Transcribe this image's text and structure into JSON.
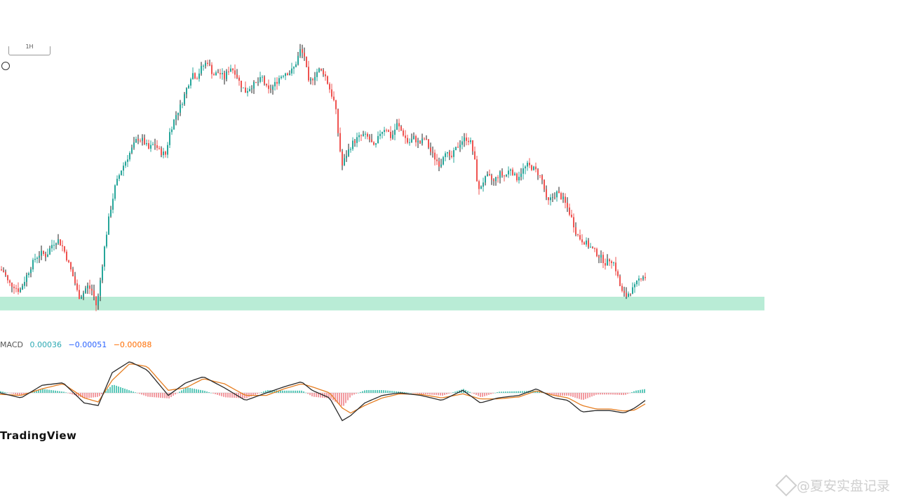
{
  "header": {
    "interval_box_label": "1H"
  },
  "macd_legend": {
    "label": "MACD",
    "values": [
      {
        "text": "0.00036",
        "color": "#2aa8b2"
      },
      {
        "text": "−0.00051",
        "color": "#2962ff"
      },
      {
        "text": "−0.00088",
        "color": "#ff6d00"
      }
    ]
  },
  "brand": {
    "logo_text": "TradingView"
  },
  "watermark": {
    "text": "@夏安实盘记录",
    "icon": "binance-diamond-icon"
  },
  "colors": {
    "up": "#26a69a",
    "down": "#ef5350",
    "wick_dark": "#222222",
    "support_zone": "#b9ecd6",
    "macd_line": "#2a2a2a",
    "signal_line": "#e67e22",
    "hist_up": "#3fbfae",
    "hist_down": "#f08a90"
  },
  "chart_data": {
    "type": "candlestick",
    "y_unit": "price (unlabeled)",
    "ylim": [
      0,
      100
    ],
    "support_zone": {
      "low": 5,
      "high": 10
    },
    "price_path": [
      [
        0,
        20
      ],
      [
        6,
        19
      ],
      [
        12,
        15
      ],
      [
        20,
        14
      ],
      [
        28,
        12
      ],
      [
        35,
        16
      ],
      [
        42,
        20
      ],
      [
        50,
        24
      ],
      [
        58,
        26
      ],
      [
        66,
        25
      ],
      [
        74,
        29
      ],
      [
        82,
        31
      ],
      [
        90,
        28
      ],
      [
        98,
        22
      ],
      [
        106,
        16
      ],
      [
        112,
        10
      ],
      [
        118,
        11
      ],
      [
        124,
        14
      ],
      [
        132,
        12
      ],
      [
        138,
        6
      ],
      [
        144,
        18
      ],
      [
        150,
        30
      ],
      [
        156,
        40
      ],
      [
        164,
        50
      ],
      [
        172,
        56
      ],
      [
        180,
        60
      ],
      [
        188,
        64
      ],
      [
        196,
        68
      ],
      [
        204,
        67
      ],
      [
        212,
        64
      ],
      [
        220,
        66
      ],
      [
        228,
        63
      ],
      [
        236,
        62
      ],
      [
        242,
        70
      ],
      [
        250,
        76
      ],
      [
        258,
        80
      ],
      [
        266,
        86
      ],
      [
        274,
        92
      ],
      [
        280,
        90
      ],
      [
        288,
        94
      ],
      [
        296,
        96
      ],
      [
        304,
        91
      ],
      [
        312,
        92
      ],
      [
        320,
        90
      ],
      [
        328,
        94
      ],
      [
        336,
        92
      ],
      [
        342,
        88
      ],
      [
        350,
        85
      ],
      [
        358,
        87
      ],
      [
        366,
        88
      ],
      [
        374,
        90
      ],
      [
        382,
        85
      ],
      [
        390,
        87
      ],
      [
        398,
        90
      ],
      [
        406,
        92
      ],
      [
        414,
        92
      ],
      [
        420,
        94
      ],
      [
        428,
        100
      ],
      [
        434,
        98
      ],
      [
        440,
        88
      ],
      [
        446,
        90
      ],
      [
        454,
        93
      ],
      [
        462,
        92
      ],
      [
        470,
        86
      ],
      [
        478,
        80
      ],
      [
        484,
        65
      ],
      [
        488,
        58
      ],
      [
        494,
        62
      ],
      [
        502,
        66
      ],
      [
        510,
        68
      ],
      [
        518,
        69
      ],
      [
        526,
        68
      ],
      [
        534,
        64
      ],
      [
        542,
        70
      ],
      [
        550,
        72
      ],
      [
        558,
        68
      ],
      [
        566,
        73
      ],
      [
        574,
        70
      ],
      [
        582,
        66
      ],
      [
        590,
        68
      ],
      [
        598,
        66
      ],
      [
        606,
        68
      ],
      [
        614,
        63
      ],
      [
        622,
        60
      ],
      [
        628,
        58
      ],
      [
        634,
        64
      ],
      [
        642,
        60
      ],
      [
        650,
        64
      ],
      [
        658,
        67
      ],
      [
        666,
        68
      ],
      [
        672,
        66
      ],
      [
        678,
        58
      ],
      [
        682,
        48
      ],
      [
        688,
        52
      ],
      [
        696,
        54
      ],
      [
        704,
        52
      ],
      [
        712,
        55
      ],
      [
        720,
        54
      ],
      [
        728,
        57
      ],
      [
        736,
        53
      ],
      [
        744,
        56
      ],
      [
        752,
        58
      ],
      [
        760,
        57
      ],
      [
        768,
        55
      ],
      [
        774,
        52
      ],
      [
        780,
        44
      ],
      [
        786,
        46
      ],
      [
        794,
        48
      ],
      [
        802,
        46
      ],
      [
        810,
        42
      ],
      [
        816,
        38
      ],
      [
        822,
        33
      ],
      [
        828,
        31
      ],
      [
        834,
        30
      ],
      [
        842,
        28
      ],
      [
        850,
        26
      ],
      [
        858,
        24
      ],
      [
        864,
        22
      ],
      [
        870,
        24
      ],
      [
        876,
        22
      ],
      [
        880,
        18
      ],
      [
        886,
        12
      ],
      [
        892,
        10
      ],
      [
        898,
        12
      ],
      [
        904,
        13
      ],
      [
        910,
        16
      ],
      [
        916,
        18
      ],
      [
        920,
        17
      ]
    ],
    "macd": {
      "macd_line": [
        [
          0,
          0
        ],
        [
          30,
          -10
        ],
        [
          60,
          15
        ],
        [
          90,
          20
        ],
        [
          120,
          -20
        ],
        [
          140,
          -25
        ],
        [
          160,
          40
        ],
        [
          185,
          62
        ],
        [
          210,
          45
        ],
        [
          240,
          -5
        ],
        [
          265,
          20
        ],
        [
          290,
          32
        ],
        [
          320,
          10
        ],
        [
          350,
          -15
        ],
        [
          380,
          0
        ],
        [
          405,
          12
        ],
        [
          430,
          22
        ],
        [
          445,
          5
        ],
        [
          470,
          -10
        ],
        [
          488,
          -55
        ],
        [
          500,
          -45
        ],
        [
          520,
          -20
        ],
        [
          545,
          -5
        ],
        [
          570,
          0
        ],
        [
          600,
          -5
        ],
        [
          630,
          -15
        ],
        [
          660,
          5
        ],
        [
          685,
          -20
        ],
        [
          710,
          -10
        ],
        [
          740,
          -5
        ],
        [
          765,
          8
        ],
        [
          790,
          -10
        ],
        [
          810,
          -15
        ],
        [
          830,
          -38
        ],
        [
          850,
          -35
        ],
        [
          870,
          -35
        ],
        [
          890,
          -40
        ],
        [
          905,
          -30
        ],
        [
          920,
          -15
        ]
      ],
      "signal_line": [
        [
          0,
          -3
        ],
        [
          30,
          -5
        ],
        [
          60,
          8
        ],
        [
          90,
          18
        ],
        [
          120,
          -10
        ],
        [
          140,
          -18
        ],
        [
          160,
          25
        ],
        [
          185,
          58
        ],
        [
          210,
          52
        ],
        [
          240,
          5
        ],
        [
          265,
          10
        ],
        [
          290,
          28
        ],
        [
          320,
          18
        ],
        [
          350,
          -5
        ],
        [
          380,
          -5
        ],
        [
          405,
          8
        ],
        [
          430,
          18
        ],
        [
          445,
          12
        ],
        [
          470,
          0
        ],
        [
          488,
          -30
        ],
        [
          500,
          -40
        ],
        [
          520,
          -25
        ],
        [
          545,
          -10
        ],
        [
          570,
          -2
        ],
        [
          600,
          -3
        ],
        [
          630,
          -10
        ],
        [
          660,
          -2
        ],
        [
          685,
          -12
        ],
        [
          710,
          -12
        ],
        [
          740,
          -8
        ],
        [
          765,
          4
        ],
        [
          790,
          -5
        ],
        [
          810,
          -10
        ],
        [
          830,
          -25
        ],
        [
          850,
          -32
        ],
        [
          870,
          -32
        ],
        [
          890,
          -36
        ],
        [
          905,
          -34
        ],
        [
          920,
          -22
        ]
      ]
    }
  }
}
